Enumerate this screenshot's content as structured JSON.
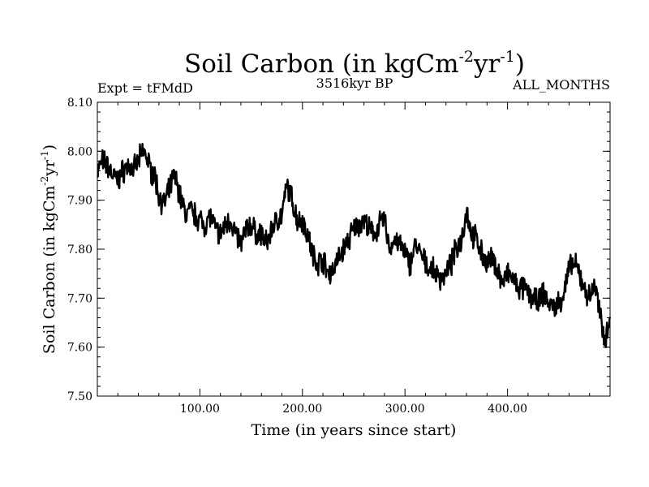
{
  "chart_data": {
    "type": "line",
    "title": "Soil Carbon (in kgCm",
    "title_sup1": "-2",
    "title_mid": "yr",
    "title_sup2": "-1",
    "title_end": ")",
    "subtitle_left": "Expt = tFMdD",
    "subtitle_center": "3516kyr BP",
    "subtitle_right": "ALL_MONTHS",
    "xlabel": "Time (in years since start)",
    "ylabel": "Soil Carbon (in kgCm",
    "ylabel_sup1": "-2",
    "ylabel_mid": "yr",
    "ylabel_sup2": "-1",
    "ylabel_end": ")",
    "xlim": [
      0,
      500
    ],
    "ylim": [
      7.5,
      8.1
    ],
    "xticks": [
      100,
      200,
      300,
      400
    ],
    "xtick_labels": [
      "100.00",
      "200.00",
      "300.00",
      "400.00"
    ],
    "yticks": [
      7.5,
      7.6,
      7.7,
      7.8,
      7.9,
      8.0,
      8.1
    ],
    "ytick_labels": [
      "7.50",
      "7.60",
      "7.70",
      "7.80",
      "7.90",
      "8.00",
      "8.10"
    ],
    "series": [
      {
        "name": "Soil Carbon",
        "x": [
          0,
          5,
          10,
          15,
          20,
          25,
          30,
          35,
          40,
          45,
          48,
          52,
          56,
          60,
          65,
          70,
          75,
          78,
          82,
          86,
          90,
          95,
          100,
          105,
          110,
          115,
          120,
          125,
          130,
          135,
          140,
          145,
          150,
          155,
          160,
          165,
          170,
          175,
          180,
          185,
          190,
          195,
          200,
          205,
          210,
          215,
          220,
          225,
          230,
          235,
          240,
          245,
          250,
          255,
          260,
          265,
          270,
          275,
          280,
          285,
          290,
          295,
          300,
          305,
          310,
          315,
          320,
          325,
          330,
          335,
          340,
          345,
          350,
          355,
          360,
          365,
          370,
          375,
          380,
          385,
          390,
          395,
          400,
          405,
          410,
          415,
          420,
          425,
          430,
          435,
          440,
          445,
          450,
          455,
          460,
          465,
          470,
          475,
          480,
          485,
          490,
          493,
          496,
          500
        ],
        "y": [
          7.96,
          7.98,
          7.97,
          7.95,
          7.94,
          7.96,
          7.97,
          7.96,
          7.98,
          8.0,
          7.99,
          7.96,
          7.95,
          7.91,
          7.89,
          7.92,
          7.95,
          7.93,
          7.9,
          7.87,
          7.88,
          7.87,
          7.86,
          7.85,
          7.87,
          7.84,
          7.83,
          7.85,
          7.86,
          7.83,
          7.81,
          7.84,
          7.85,
          7.83,
          7.83,
          7.81,
          7.84,
          7.86,
          7.87,
          7.93,
          7.9,
          7.86,
          7.86,
          7.83,
          7.79,
          7.77,
          7.78,
          7.75,
          7.76,
          7.78,
          7.8,
          7.82,
          7.84,
          7.85,
          7.86,
          7.84,
          7.83,
          7.85,
          7.86,
          7.8,
          7.82,
          7.81,
          7.79,
          7.77,
          7.81,
          7.79,
          7.77,
          7.76,
          7.75,
          7.74,
          7.75,
          7.77,
          7.8,
          7.82,
          7.88,
          7.83,
          7.82,
          7.79,
          7.77,
          7.78,
          7.76,
          7.73,
          7.75,
          7.74,
          7.72,
          7.72,
          7.71,
          7.7,
          7.69,
          7.71,
          7.69,
          7.68,
          7.69,
          7.71,
          7.76,
          7.77,
          7.75,
          7.72,
          7.7,
          7.73,
          7.67,
          7.63,
          7.62,
          7.67
        ]
      }
    ]
  }
}
